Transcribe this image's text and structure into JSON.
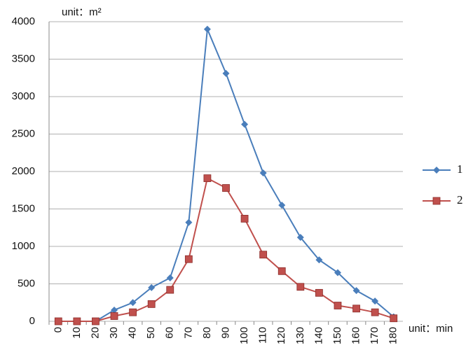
{
  "chart_data": {
    "type": "line",
    "y_label": "unit：m²",
    "x_label": "unit：min",
    "categories": [
      "0",
      "10",
      "20",
      "30",
      "40",
      "50",
      "60",
      "70",
      "80",
      "90",
      "100",
      "110",
      "120",
      "130",
      "140",
      "150",
      "160",
      "170",
      "180"
    ],
    "series": [
      {
        "name": "1",
        "color": "#4a7ebb",
        "marker": "diamond",
        "values": [
          0,
          0,
          0,
          150,
          250,
          450,
          580,
          1320,
          3900,
          3310,
          2630,
          1980,
          1550,
          1120,
          820,
          650,
          410,
          270,
          60
        ]
      },
      {
        "name": "2",
        "color": "#c0504d",
        "marker": "square",
        "values": [
          0,
          0,
          0,
          70,
          120,
          230,
          420,
          830,
          1910,
          1780,
          1370,
          890,
          670,
          460,
          380,
          210,
          170,
          120,
          40
        ]
      }
    ],
    "ylim": [
      0,
      4000
    ],
    "yticks": [
      0,
      500,
      1000,
      1500,
      2000,
      2500,
      3000,
      3500,
      4000
    ],
    "grid": true,
    "legend": "right"
  }
}
